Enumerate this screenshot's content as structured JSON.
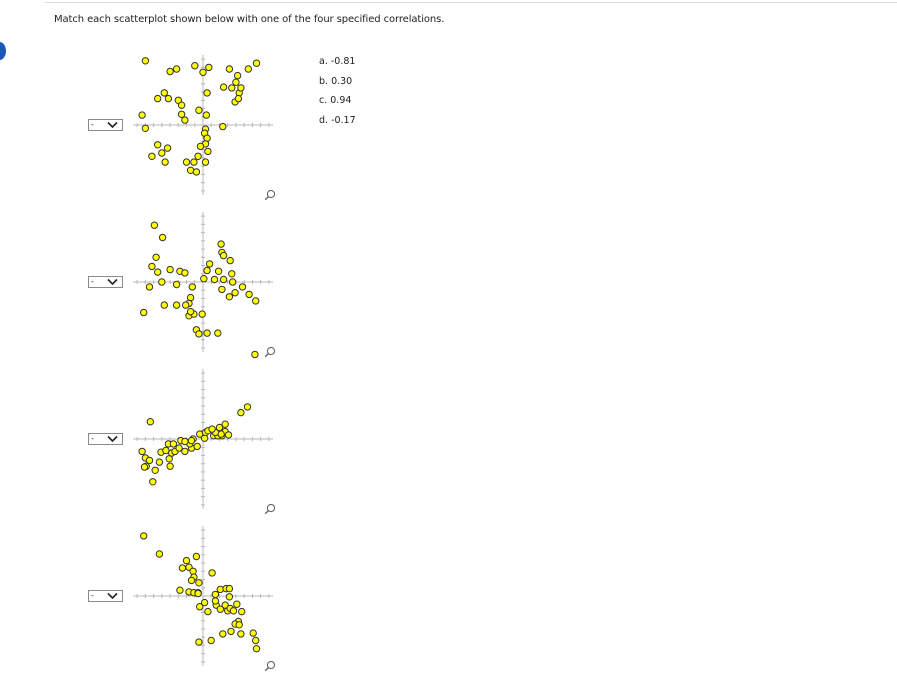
{
  "question": {
    "prompt": "Match each scatterplot shown below with one of the four specified correlations."
  },
  "options": [
    {
      "label": "a. -0.81"
    },
    {
      "label": "b. 0.30"
    },
    {
      "label": "c. 0.94"
    },
    {
      "label": "d. -0.17"
    }
  ],
  "selects": [
    {
      "value": "-"
    },
    {
      "value": "-"
    },
    {
      "value": "-"
    },
    {
      "value": "-"
    }
  ],
  "icons": {
    "dropdown": "chevron-down-icon",
    "zoom": "magnifier-icon",
    "active_marker": "blue-dot-marker"
  },
  "colors": {
    "point_fill": "#ffff00",
    "point_stroke": "#333333",
    "axis": "#b8b8b8",
    "marker": "#1f56b5"
  },
  "chart_data": [
    {
      "type": "scatter",
      "points": [
        [
          -7,
          7.8
        ],
        [
          -4,
          6.5
        ],
        [
          -3.2,
          6.8
        ],
        [
          -1,
          7.2
        ],
        [
          0,
          6.4
        ],
        [
          0.7,
          7
        ],
        [
          3.2,
          6.8
        ],
        [
          4.2,
          6
        ],
        [
          5.5,
          6.8
        ],
        [
          6.5,
          7.5
        ],
        [
          3.5,
          4.5
        ],
        [
          4,
          5.2
        ],
        [
          0.5,
          3.9
        ],
        [
          2.5,
          4.6
        ],
        [
          -4.7,
          3.9
        ],
        [
          -4.2,
          3.2
        ],
        [
          -5.5,
          3.2
        ],
        [
          -3,
          3
        ],
        [
          -2.6,
          2.4
        ],
        [
          -2.6,
          1.3
        ],
        [
          -0.5,
          1.8
        ],
        [
          0.4,
          1.2
        ],
        [
          -2.2,
          0.6
        ],
        [
          3.9,
          2.8
        ],
        [
          4.4,
          3.9
        ],
        [
          4.6,
          4.5
        ],
        [
          4.3,
          3.2
        ],
        [
          -7.4,
          1.2
        ],
        [
          -7,
          -0.4
        ],
        [
          2.4,
          -0.2
        ],
        [
          -5.5,
          -2.4
        ],
        [
          -5,
          -3.4
        ],
        [
          -4.3,
          -2.8
        ],
        [
          -6.2,
          -3.8
        ],
        [
          -4.6,
          -4.5
        ],
        [
          0.3,
          -0.5
        ],
        [
          0.2,
          -1
        ],
        [
          0.5,
          -1.6
        ],
        [
          0.3,
          -2.3
        ],
        [
          -0.3,
          -2.6
        ],
        [
          0.6,
          -3.2
        ],
        [
          -0.6,
          -3.8
        ],
        [
          0.3,
          -4.5
        ],
        [
          -2,
          -4.5
        ],
        [
          -1.1,
          -4.5
        ],
        [
          -1.5,
          -5.5
        ],
        [
          -0.8,
          -5.7
        ]
      ]
    },
    {
      "type": "scatter",
      "points": [
        [
          -5.9,
          6.9
        ],
        [
          -4.9,
          5.4
        ],
        [
          -5.7,
          3
        ],
        [
          -6.2,
          1.9
        ],
        [
          -5.5,
          1.2
        ],
        [
          -4,
          1.5
        ],
        [
          -2.8,
          1.3
        ],
        [
          -2.2,
          1.1
        ],
        [
          -5,
          0
        ],
        [
          -6.5,
          -0.6
        ],
        [
          -3.2,
          -0.3
        ],
        [
          -1.3,
          -0.6
        ],
        [
          -1.5,
          -1.9
        ],
        [
          -1.7,
          -2.6
        ],
        [
          -2.1,
          -2.8
        ],
        [
          -3.2,
          -2.8
        ],
        [
          -4.7,
          -2.8
        ],
        [
          -7.2,
          -3.7
        ],
        [
          -1.7,
          -4.1
        ],
        [
          -1.1,
          -3.9
        ],
        [
          -0.1,
          -3.9
        ],
        [
          -1.5,
          -3.6
        ],
        [
          0.8,
          2.2
        ],
        [
          0.5,
          1.4
        ],
        [
          1.9,
          1.3
        ],
        [
          2.2,
          4.6
        ],
        [
          2.3,
          3.6
        ],
        [
          2.5,
          3.2
        ],
        [
          3.3,
          2.6
        ],
        [
          0.1,
          0.4
        ],
        [
          1.4,
          0.3
        ],
        [
          2.5,
          0.3
        ],
        [
          3.5,
          1
        ],
        [
          3.6,
          0
        ],
        [
          3.9,
          -1.3
        ],
        [
          2.3,
          -0.9
        ],
        [
          4.8,
          -0.6
        ],
        [
          5.6,
          -1.5
        ],
        [
          3.2,
          -1.8
        ],
        [
          6.4,
          -2.3
        ],
        [
          -0.8,
          -5.8
        ],
        [
          -0.5,
          -6.3
        ],
        [
          0.5,
          -6.2
        ],
        [
          1.8,
          -6.2
        ],
        [
          6.3,
          -8.8
        ]
      ]
    },
    {
      "type": "scatter",
      "points": [
        [
          -7.4,
          -1.5
        ],
        [
          -7,
          -2.3
        ],
        [
          -6.5,
          -2.6
        ],
        [
          -6.9,
          -3.3
        ],
        [
          -5.8,
          -3.8
        ],
        [
          -5.3,
          -2.8
        ],
        [
          -4.1,
          -2.4
        ],
        [
          -3.8,
          -1.7
        ],
        [
          -5.1,
          -1.6
        ],
        [
          -4.5,
          -1.4
        ],
        [
          -4.2,
          -0.6
        ],
        [
          -3.6,
          -0.6
        ],
        [
          -2.7,
          -0.2
        ],
        [
          -3.4,
          -1.5
        ],
        [
          -1.4,
          -1.1
        ],
        [
          -1.6,
          -0.6
        ],
        [
          -0.7,
          -0.9
        ],
        [
          -0.4,
          0.6
        ],
        [
          -1.2,
          0
        ],
        [
          -2.2,
          -1.5
        ],
        [
          0.2,
          0.1
        ],
        [
          0.3,
          0.8
        ],
        [
          1.3,
          0.4
        ],
        [
          2.3,
          0.4
        ],
        [
          2.7,
          0.9
        ],
        [
          3.1,
          0.5
        ],
        [
          1.8,
          0.4
        ],
        [
          2.2,
          0.6
        ],
        [
          0.6,
          1
        ],
        [
          1.5,
          0.8
        ],
        [
          2.7,
          1.8
        ],
        [
          1.1,
          1.2
        ],
        [
          2,
          1.4
        ],
        [
          -2.2,
          -0.3
        ],
        [
          -1.4,
          -0.2
        ],
        [
          4.6,
          3.2
        ],
        [
          5.4,
          3.9
        ],
        [
          -6.1,
          -5.2
        ],
        [
          -4,
          -3.3
        ],
        [
          -7.1,
          -3.4
        ],
        [
          -2.9,
          -1.1
        ],
        [
          -6.4,
          2.1
        ]
      ]
    },
    {
      "type": "scatter",
      "points": [
        [
          -7.2,
          7.3
        ],
        [
          -5.3,
          5.1
        ],
        [
          -2,
          4.3
        ],
        [
          -2.5,
          3.4
        ],
        [
          -1.7,
          3.5
        ],
        [
          -1.2,
          3
        ],
        [
          -0.8,
          4.8
        ],
        [
          1.1,
          2.8
        ],
        [
          -1.1,
          2.3
        ],
        [
          -1.4,
          1.9
        ],
        [
          -0.5,
          1.6
        ],
        [
          -1.7,
          0.5
        ],
        [
          -2.8,
          0.7
        ],
        [
          -1.1,
          0.4
        ],
        [
          -0.6,
          0.4
        ],
        [
          -0.6,
          0.3
        ],
        [
          2.1,
          0.8
        ],
        [
          2.8,
          0.9
        ],
        [
          3.2,
          -0.1
        ],
        [
          1.5,
          0.2
        ],
        [
          3.2,
          0.9
        ],
        [
          1.6,
          -1.1
        ],
        [
          3,
          -1.8
        ],
        [
          4.1,
          -1
        ],
        [
          2.7,
          -1.1
        ],
        [
          -0.4,
          -1.3
        ],
        [
          0.2,
          -0.8
        ],
        [
          0.6,
          -1.9
        ],
        [
          1.5,
          -0.6
        ],
        [
          2.1,
          -1.6
        ],
        [
          3.3,
          -1.5
        ],
        [
          3.7,
          -1.8
        ],
        [
          4.7,
          -1.9
        ],
        [
          4.3,
          -3.1
        ],
        [
          3.9,
          -3.4
        ],
        [
          4.4,
          -3.5
        ],
        [
          3.4,
          -4.3
        ],
        [
          4.6,
          -4.6
        ],
        [
          2.4,
          -4.6
        ],
        [
          6.1,
          -4.5
        ],
        [
          6.4,
          -5.4
        ],
        [
          6.5,
          -6.4
        ],
        [
          1,
          -5.4
        ],
        [
          -0.5,
          -5.6
        ]
      ]
    }
  ]
}
